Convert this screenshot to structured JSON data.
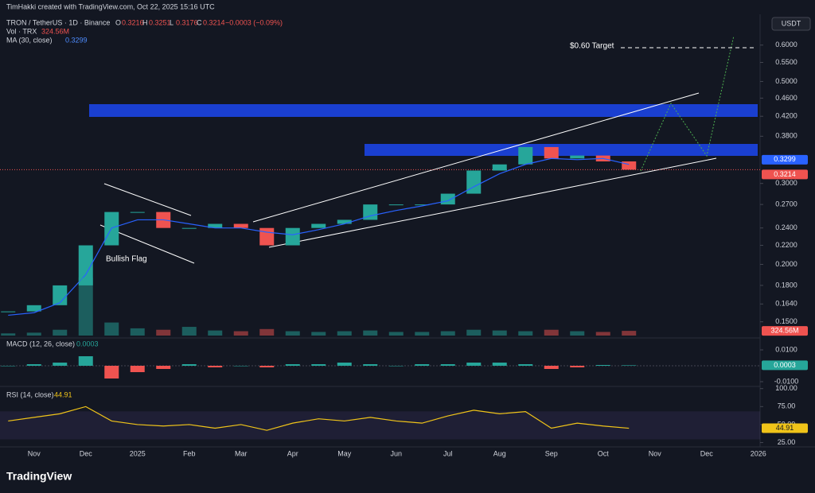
{
  "header": {
    "credit": "TimHakki created with TradingView.com, Oct 22, 2025 15:16 UTC",
    "symbol": "TRON / TetherUS · 1D · Binance",
    "ohlc": [
      [
        "O",
        "0.3216"
      ],
      [
        "H",
        "0.3251"
      ],
      [
        "L",
        "0.3176"
      ],
      [
        "C",
        "0.3214"
      ]
    ],
    "change": "−0.0003 (−0.09%)",
    "currency": "USDT",
    "brand": "TradingView"
  },
  "chart_data": [
    {
      "type": "candlestick",
      "log": true,
      "grid": false,
      "categories": [
        null,
        "Nov",
        null,
        "Dec",
        null,
        "2025",
        null,
        "Feb",
        null,
        "Mar",
        null,
        "Apr",
        null,
        "May",
        null,
        "Jun",
        null,
        "Jul",
        null,
        "Aug",
        null,
        "Sep",
        null,
        "Oct",
        null,
        "Nov",
        null,
        "Dec",
        null,
        "2026"
      ],
      "series": [
        {
          "name": "TRON / TetherUS",
          "color_up": "#26a69a",
          "color_down": "#ef5350",
          "last_label": "0.3214",
          "values": [
            0.158,
            0.163,
            0.18,
            0.22,
            0.26,
            0.26,
            0.24,
            0.24,
            0.245,
            0.24,
            0.22,
            0.24,
            0.245,
            0.25,
            0.27,
            0.27,
            0.27,
            0.285,
            0.32,
            0.33,
            0.36,
            0.34,
            0.345,
            0.335,
            0.3214,
            null,
            null,
            null,
            null,
            null
          ]
        },
        {
          "name": "MA (30, close)",
          "color": "#2962ff",
          "last_label": "0.3299",
          "values": [
            0.155,
            0.157,
            0.165,
            0.19,
            0.24,
            0.25,
            0.25,
            0.245,
            0.24,
            0.24,
            0.235,
            0.232,
            0.238,
            0.245,
            0.255,
            0.262,
            0.268,
            0.275,
            0.295,
            0.315,
            0.33,
            0.34,
            0.338,
            0.34,
            0.3299,
            null,
            null,
            null,
            null,
            null
          ]
        }
      ],
      "ylim": [
        0.14,
        0.7
      ],
      "yticks": [
        {
          "value": 0.15,
          "label": "0.1500"
        },
        {
          "value": 0.164,
          "label": "0.1640"
        },
        {
          "value": 0.18,
          "label": "0.1800"
        },
        {
          "value": 0.2,
          "label": "0.2000"
        },
        {
          "value": 0.22,
          "label": "0.2200"
        },
        {
          "value": 0.24,
          "label": "0.2400"
        },
        {
          "value": 0.27,
          "label": "0.2700"
        },
        {
          "value": 0.3,
          "label": "0.3000"
        },
        {
          "value": 0.38,
          "label": "0.3800"
        },
        {
          "value": 0.42,
          "label": "0.4200"
        },
        {
          "value": 0.46,
          "label": "0.4600"
        },
        {
          "value": 0.5,
          "label": "0.5000"
        },
        {
          "value": 0.55,
          "label": "0.5500"
        },
        {
          "value": 0.6,
          "label": "0.6000"
        }
      ],
      "annotations": {
        "target": "$0.60 Target",
        "flag": "Bullish Flag"
      }
    },
    {
      "type": "bar",
      "name": "Vol · TRX",
      "last_label": "324.56M",
      "ylim": [
        0,
        4500
      ],
      "values": [
        150,
        200,
        400,
        4000,
        900,
        500,
        400,
        600,
        350,
        300,
        450,
        300,
        250,
        300,
        350,
        250,
        250,
        300,
        400,
        350,
        300,
        400,
        300,
        250,
        324.56,
        null,
        null,
        null,
        null,
        null
      ]
    },
    {
      "type": "bar",
      "name": "MACD (12, 26, close)",
      "last_label": "0.0003",
      "color_up": "#26a69a",
      "color_down": "#ef5350",
      "ylim": [
        -0.013,
        0.016
      ],
      "yticks": [
        {
          "value": 0.01,
          "label": "0.0100"
        },
        {
          "value": -0.01,
          "label": "-0.0100"
        }
      ],
      "values": [
        0,
        0.001,
        0.002,
        0.006,
        -0.008,
        -0.004,
        -0.002,
        0.001,
        -0.001,
        0,
        -0.001,
        0.001,
        0.001,
        0.002,
        0.001,
        0,
        0.001,
        0.001,
        0.002,
        0.002,
        0.001,
        -0.002,
        -0.001,
        0.0005,
        0.0003,
        null,
        null,
        null,
        null,
        null
      ]
    },
    {
      "type": "line",
      "name": "RSI (14, close)",
      "last_label": "44.91",
      "color": "#f0c419",
      "ylim": [
        19,
        103
      ],
      "yticks": [
        {
          "value": 100,
          "label": "100.00"
        },
        {
          "value": 75,
          "label": "75.00"
        },
        {
          "value": 50,
          "label": "50.00"
        },
        {
          "value": 25,
          "label": "25.00"
        }
      ],
      "values": [
        55,
        60,
        65,
        75,
        55,
        50,
        48,
        50,
        45,
        50,
        42,
        52,
        58,
        55,
        60,
        55,
        52,
        62,
        70,
        65,
        68,
        45,
        52,
        48,
        44.91,
        null,
        null,
        null,
        null,
        null
      ]
    }
  ]
}
